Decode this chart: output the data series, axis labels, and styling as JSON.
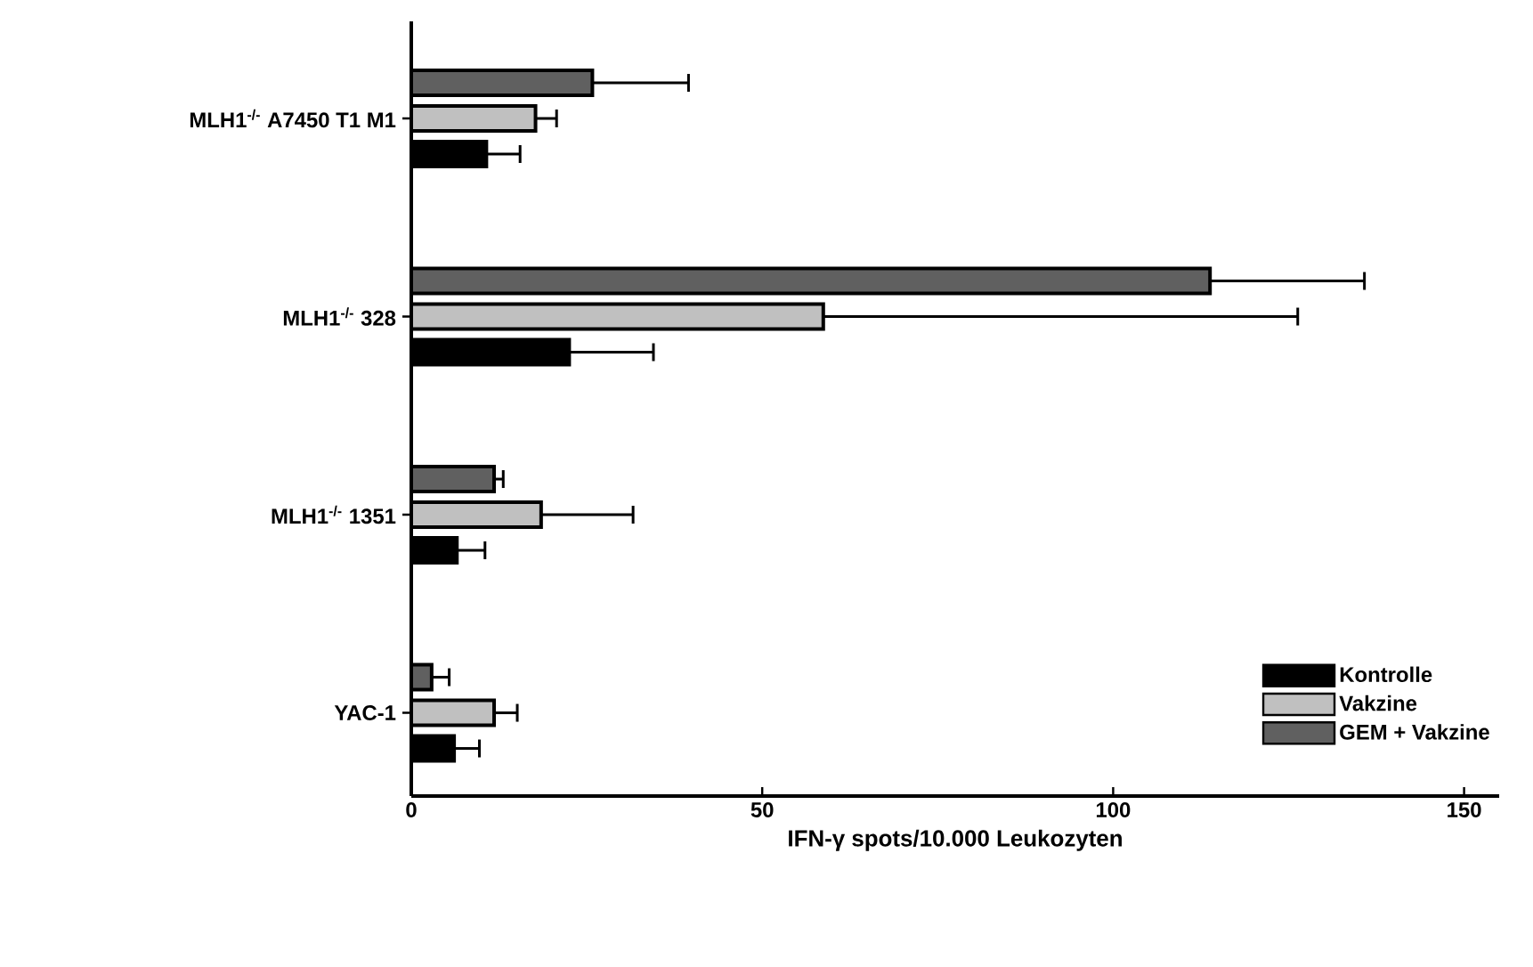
{
  "chart_data": {
    "type": "bar",
    "orientation": "horizontal",
    "xlabel": "IFN-γ spots/10.000 Leukozyten",
    "categories": [
      "MLH1$^{-/-}$ A7450 T1 M1",
      "MLH1$^{-/-}$ 328",
      "MLH1$^{-/-}$ 1351",
      "YAC-1"
    ],
    "series": [
      {
        "name": "Kontrolle",
        "color": "#000000",
        "values": [
          10.7,
          22.5,
          6.5,
          6.1
        ],
        "errors": [
          [
            10.7,
            15.5
          ],
          [
            22.5,
            34.5
          ],
          [
            6.5,
            10.5
          ],
          [
            6.1,
            9.7
          ]
        ]
      },
      {
        "name": "Vakzine",
        "color": "#c0c0c0",
        "values": [
          17.7,
          58.7,
          18.5,
          11.8
        ],
        "errors": [
          [
            17.7,
            20.7
          ],
          [
            58.7,
            126.3
          ],
          [
            18.5,
            31.6
          ],
          [
            11.8,
            15.1
          ]
        ]
      },
      {
        "name": "GEM + Vakzine",
        "color": "#606060",
        "values": [
          25.8,
          113.8,
          11.8,
          2.9
        ],
        "errors": [
          [
            25.8,
            39.5
          ],
          [
            113.8,
            135.8
          ],
          [
            11.8,
            13.1
          ],
          [
            2.9,
            5.4
          ]
        ]
      }
    ],
    "xlim": [
      0,
      155
    ],
    "xticks": [
      0,
      50,
      100,
      150
    ],
    "legend": "bottom right"
  }
}
